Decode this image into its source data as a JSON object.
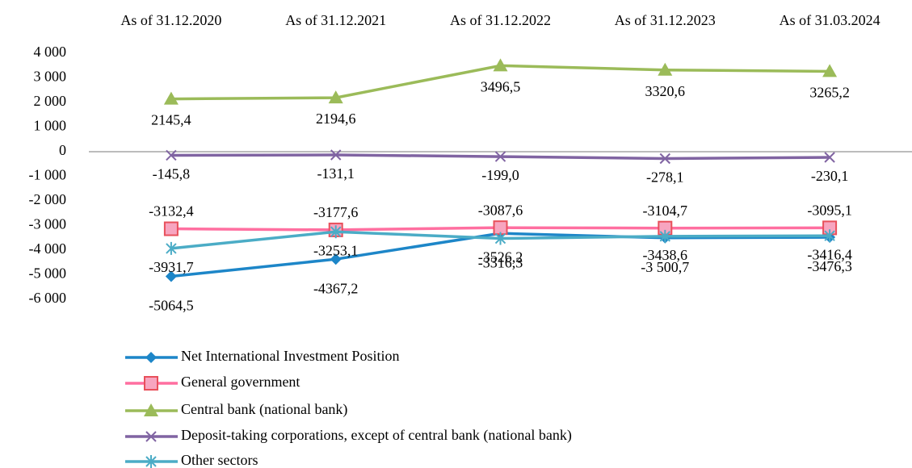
{
  "chart_data": {
    "type": "line",
    "categories": [
      "As of  31.12.2020",
      "As of  31.12.2021",
      "As of  31.12.2022",
      "As of  31.12.2023",
      "As of  31.03.2024"
    ],
    "ylim": [
      -6000,
      4000
    ],
    "yticks": [
      {
        "value": 4000,
        "label": "4 000"
      },
      {
        "value": 3000,
        "label": "3 000"
      },
      {
        "value": 2000,
        "label": "2 000"
      },
      {
        "value": 1000,
        "label": "1 000"
      },
      0,
      {
        "value": -1000,
        "label": "-1 000"
      },
      {
        "value": -2000,
        "label": "-2 000"
      },
      {
        "value": -3000,
        "label": "-3 000"
      },
      {
        "value": -4000,
        "label": "-4 000"
      },
      {
        "value": -5000,
        "label": "-5 000"
      },
      {
        "value": -6000,
        "label": "-6 000"
      }
    ],
    "legend": "bottom",
    "series": [
      {
        "name": "Net International Investment Position",
        "color": "#1d86c8",
        "marker": "diamond",
        "values": [
          -5064.5,
          -4367.2,
          -3316.3,
          -3500.7,
          -3476.3
        ],
        "value_labels": [
          "-5064,5",
          "-4367,2",
          "-3316,3",
          "-3 500,7",
          "-3476,3"
        ]
      },
      {
        "name": "General government",
        "color": "#ff6fa0",
        "marker": "square",
        "values": [
          -3132.4,
          -3177.6,
          -3087.6,
          -3104.7,
          -3095.1
        ],
        "value_labels": [
          "-3132,4",
          "-3177,6",
          "-3087,6",
          "-3104,7",
          "-3095,1"
        ]
      },
      {
        "name": "Central bank (national bank)",
        "color": "#9bbb59",
        "marker": "triangle",
        "values": [
          2145.4,
          2194.6,
          3496.5,
          3320.6,
          3265.2
        ],
        "value_labels": [
          "2145,4",
          "2194,6",
          "3496,5",
          "3320,6",
          "3265,2"
        ]
      },
      {
        "name": "Deposit-taking corporations, except of central bank (national bank)",
        "color": "#8064a2",
        "marker": "x",
        "values": [
          -145.8,
          -131.1,
          -199.0,
          -278.1,
          -230.1
        ],
        "value_labels": [
          "-145,8",
          "-131,1",
          "-199,0",
          "-278,1",
          "-230,1"
        ]
      },
      {
        "name": "Other sectors",
        "color": "#4bacc6",
        "marker": "star",
        "values": [
          -3931.7,
          -3253.1,
          -3526.2,
          -3438.6,
          -3416.4
        ],
        "value_labels": [
          "-3931,7",
          "-3253,1",
          "-3526,2",
          "-3438,6",
          "-3416,4"
        ]
      }
    ]
  }
}
